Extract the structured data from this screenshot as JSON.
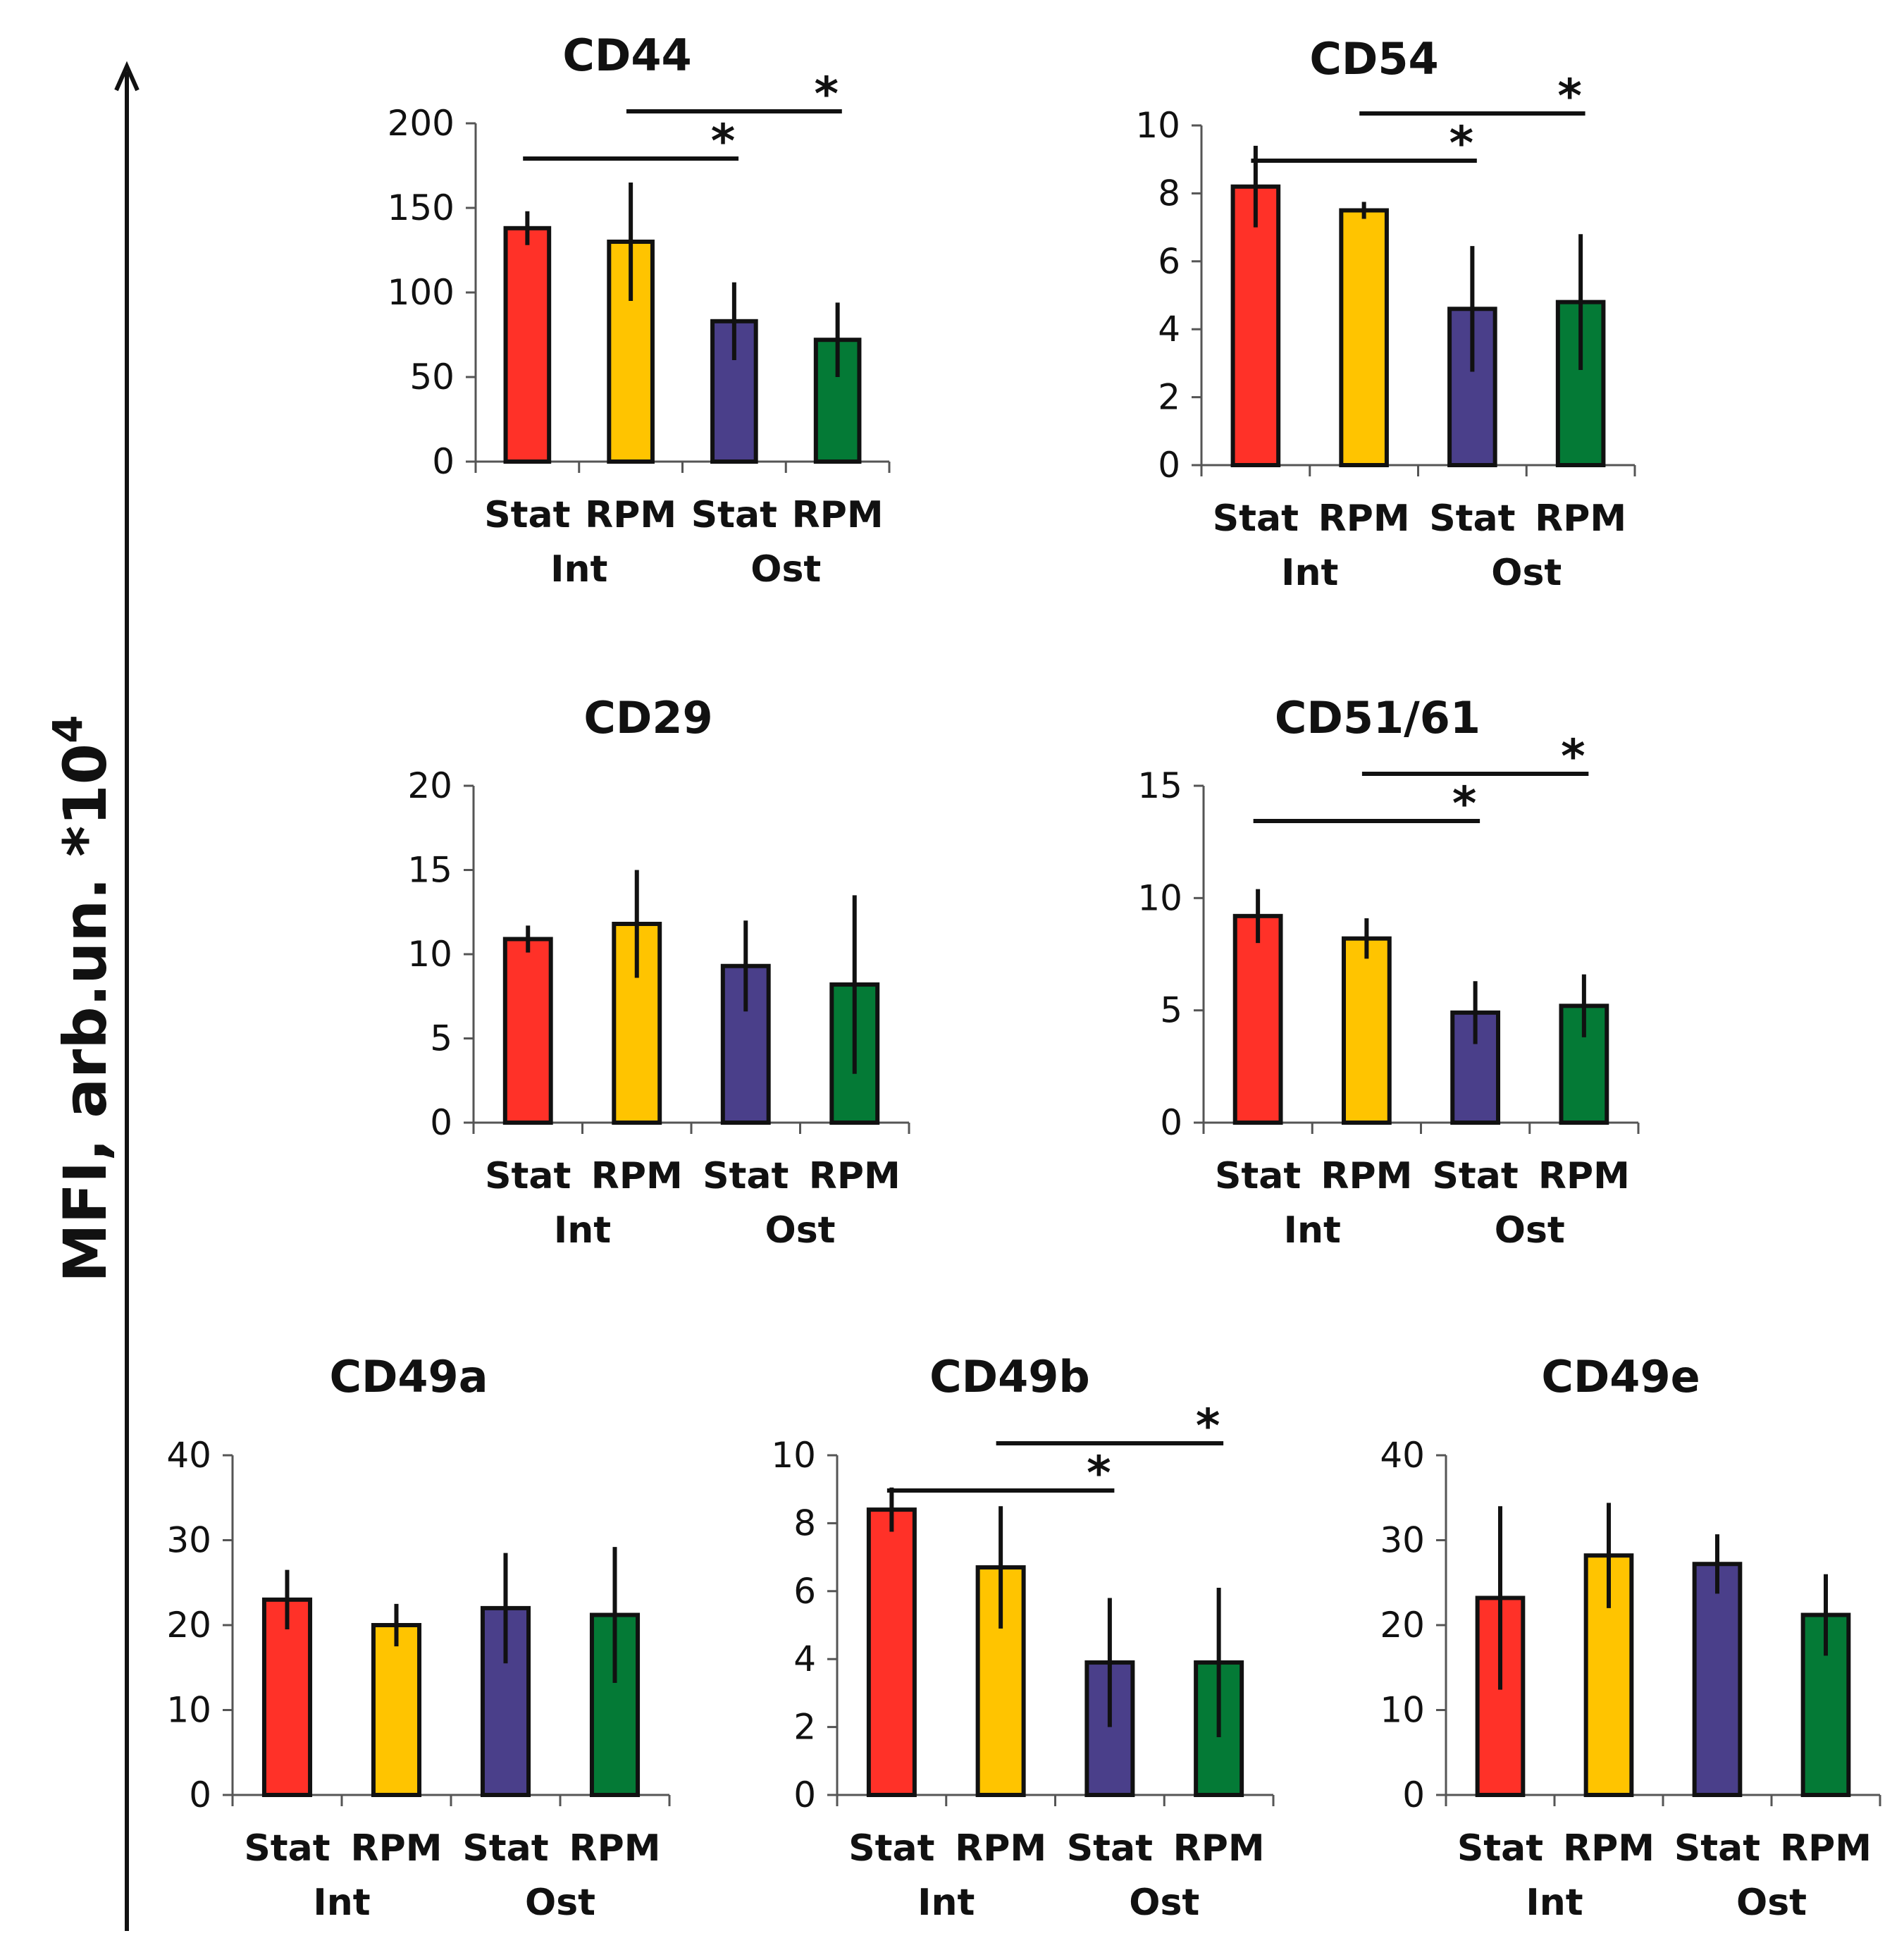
{
  "colors": {
    "Stat Int": "#ff3128",
    "RPM Int": "#ffc400",
    "Stat Ost": "#4a3f8a",
    "RPM Ost": "#047a36"
  },
  "y_axis_label": "MFI, arb.un. *10",
  "y_axis_label_exponent": "4",
  "chart_data": [
    {
      "type": "bar",
      "title": "CD44",
      "categories": [
        "Stat",
        "RPM",
        "Stat",
        "RPM"
      ],
      "groups": [
        "Int",
        "Ost"
      ],
      "series_keys": [
        "Stat Int",
        "RPM Int",
        "Stat Ost",
        "RPM Ost"
      ],
      "values": [
        138,
        130,
        83,
        72
      ],
      "errors": [
        10,
        35,
        23,
        22
      ],
      "ylim": [
        0,
        200
      ],
      "yticks": [
        0,
        50,
        100,
        150,
        200
      ],
      "significance": [
        {
          "from": 0,
          "to": 2,
          "label": "*"
        },
        {
          "from": 1,
          "to": 3,
          "label": "*"
        }
      ]
    },
    {
      "type": "bar",
      "title": "CD54",
      "categories": [
        "Stat",
        "RPM",
        "Stat",
        "RPM"
      ],
      "groups": [
        "Int",
        "Ost"
      ],
      "series_keys": [
        "Stat Int",
        "RPM Int",
        "Stat Ost",
        "RPM Ost"
      ],
      "values": [
        8.2,
        7.5,
        4.6,
        4.8
      ],
      "errors": [
        1.2,
        0.25,
        1.85,
        2.0
      ],
      "ylim": [
        0,
        10
      ],
      "yticks": [
        0,
        2,
        4,
        6,
        8,
        10
      ],
      "significance": [
        {
          "from": 0,
          "to": 2,
          "label": "*"
        },
        {
          "from": 1,
          "to": 3,
          "label": "*"
        }
      ]
    },
    {
      "type": "bar",
      "title": "CD29",
      "categories": [
        "Stat",
        "RPM",
        "Stat",
        "RPM"
      ],
      "groups": [
        "Int",
        "Ost"
      ],
      "series_keys": [
        "Stat Int",
        "RPM Int",
        "Stat Ost",
        "RPM Ost"
      ],
      "values": [
        10.9,
        11.8,
        9.3,
        8.2
      ],
      "errors": [
        0.8,
        3.2,
        2.7,
        5.3
      ],
      "ylim": [
        0,
        20
      ],
      "yticks": [
        0,
        5,
        10,
        15,
        20
      ],
      "significance": []
    },
    {
      "type": "bar",
      "title": "CD51/61",
      "categories": [
        "Stat",
        "RPM",
        "Stat",
        "RPM"
      ],
      "groups": [
        "Int",
        "Ost"
      ],
      "series_keys": [
        "Stat Int",
        "RPM Int",
        "Stat Ost",
        "RPM Ost"
      ],
      "values": [
        9.2,
        8.2,
        4.9,
        5.2
      ],
      "errors": [
        1.2,
        0.9,
        1.4,
        1.4
      ],
      "ylim": [
        0,
        15
      ],
      "yticks": [
        0,
        5,
        10,
        15
      ],
      "significance": [
        {
          "from": 0,
          "to": 2,
          "label": "*"
        },
        {
          "from": 1,
          "to": 3,
          "label": "*"
        }
      ]
    },
    {
      "type": "bar",
      "title": "CD49a",
      "categories": [
        "Stat",
        "RPM",
        "Stat",
        "RPM"
      ],
      "groups": [
        "Int",
        "Ost"
      ],
      "series_keys": [
        "Stat Int",
        "RPM Int",
        "Stat Ost",
        "RPM Ost"
      ],
      "values": [
        23,
        20,
        22,
        21.2
      ],
      "errors": [
        3.5,
        2.5,
        6.5,
        8.0
      ],
      "ylim": [
        0,
        40
      ],
      "yticks": [
        0,
        10,
        20,
        30,
        40
      ],
      "significance": []
    },
    {
      "type": "bar",
      "title": "CD49b",
      "categories": [
        "Stat",
        "RPM",
        "Stat",
        "RPM"
      ],
      "groups": [
        "Int",
        "Ost"
      ],
      "series_keys": [
        "Stat Int",
        "RPM Int",
        "Stat Ost",
        "RPM Ost"
      ],
      "values": [
        8.4,
        6.7,
        3.9,
        3.9
      ],
      "errors": [
        0.65,
        1.8,
        1.9,
        2.2
      ],
      "ylim": [
        0,
        10
      ],
      "yticks": [
        0,
        2,
        4,
        6,
        8,
        10
      ],
      "significance": [
        {
          "from": 0,
          "to": 2,
          "label": "*"
        },
        {
          "from": 1,
          "to": 3,
          "label": "*"
        }
      ]
    },
    {
      "type": "bar",
      "title": "CD49e",
      "categories": [
        "Stat",
        "RPM",
        "Stat",
        "RPM"
      ],
      "groups": [
        "Int",
        "Ost"
      ],
      "series_keys": [
        "Stat Int",
        "RPM Int",
        "Stat Ost",
        "RPM Ost"
      ],
      "values": [
        23.2,
        28.2,
        27.2,
        21.2
      ],
      "errors": [
        10.8,
        6.2,
        3.5,
        4.8
      ],
      "ylim": [
        0,
        40
      ],
      "yticks": [
        0,
        10,
        20,
        30,
        40
      ],
      "significance": []
    }
  ]
}
